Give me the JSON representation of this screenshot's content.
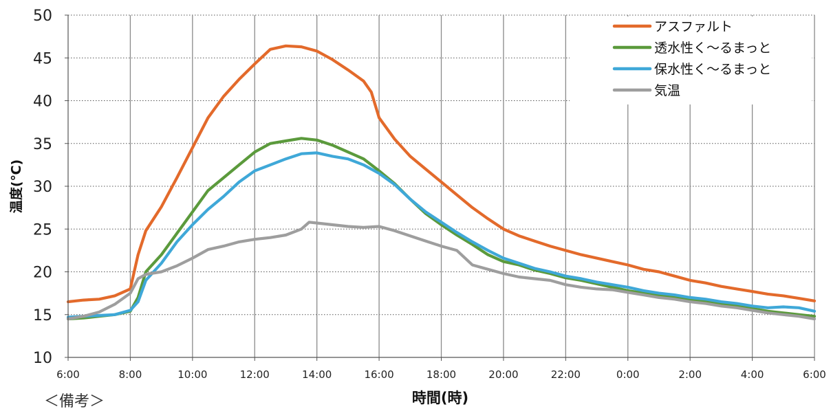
{
  "chart_data": {
    "type": "line",
    "xlabel": "時間(時)",
    "ylabel": "温度(℃)",
    "ylim": [
      10,
      50
    ],
    "yticks": [
      10,
      15,
      20,
      25,
      30,
      35,
      40,
      45,
      50
    ],
    "x_tick_labels": [
      "6:00",
      "8:00",
      "10:00",
      "12:00",
      "14:00",
      "16:00",
      "18:00",
      "20:00",
      "22:00",
      "0:00",
      "2:00",
      "4:00",
      "6:00"
    ],
    "x_hours_range": [
      6,
      30
    ],
    "grid": "vertical solid lines every 2 hours, horizontal dotted lines every 5",
    "legend_position": "top-right",
    "series": [
      {
        "name": "アスファルト",
        "color": "#E36A2B",
        "points": [
          [
            6.0,
            16.5
          ],
          [
            6.5,
            16.7
          ],
          [
            7.0,
            16.8
          ],
          [
            7.5,
            17.2
          ],
          [
            8.0,
            18.0
          ],
          [
            8.25,
            22.0
          ],
          [
            8.5,
            24.8
          ],
          [
            8.75,
            26.2
          ],
          [
            9.0,
            27.6
          ],
          [
            9.5,
            31.0
          ],
          [
            10.0,
            34.5
          ],
          [
            10.5,
            38.0
          ],
          [
            11.0,
            40.5
          ],
          [
            11.5,
            42.5
          ],
          [
            12.0,
            44.3
          ],
          [
            12.5,
            46.0
          ],
          [
            13.0,
            46.4
          ],
          [
            13.5,
            46.3
          ],
          [
            14.0,
            45.8
          ],
          [
            14.5,
            44.8
          ],
          [
            15.0,
            43.6
          ],
          [
            15.5,
            42.3
          ],
          [
            15.75,
            41.0
          ],
          [
            16.0,
            38.0
          ],
          [
            16.5,
            35.5
          ],
          [
            17.0,
            33.5
          ],
          [
            17.5,
            32.0
          ],
          [
            18.0,
            30.5
          ],
          [
            18.5,
            29.0
          ],
          [
            19.0,
            27.5
          ],
          [
            19.5,
            26.2
          ],
          [
            20.0,
            25.0
          ],
          [
            20.5,
            24.2
          ],
          [
            21.0,
            23.6
          ],
          [
            21.5,
            23.0
          ],
          [
            22.0,
            22.5
          ],
          [
            22.5,
            22.0
          ],
          [
            23.0,
            21.6
          ],
          [
            23.5,
            21.2
          ],
          [
            24.0,
            20.8
          ],
          [
            24.5,
            20.3
          ],
          [
            25.0,
            20.0
          ],
          [
            25.5,
            19.5
          ],
          [
            26.0,
            19.0
          ],
          [
            26.5,
            18.7
          ],
          [
            27.0,
            18.3
          ],
          [
            27.5,
            18.0
          ],
          [
            28.0,
            17.7
          ],
          [
            28.5,
            17.4
          ],
          [
            29.0,
            17.2
          ],
          [
            29.5,
            16.9
          ],
          [
            30.0,
            16.6
          ]
        ]
      },
      {
        "name": "透水性く～るまっと",
        "color": "#5B9A3C",
        "points": [
          [
            6.0,
            14.5
          ],
          [
            6.5,
            14.6
          ],
          [
            7.0,
            14.8
          ],
          [
            7.5,
            15.0
          ],
          [
            8.0,
            15.4
          ],
          [
            8.25,
            17.0
          ],
          [
            8.5,
            20.0
          ],
          [
            9.0,
            22.0
          ],
          [
            9.5,
            24.5
          ],
          [
            10.0,
            27.0
          ],
          [
            10.5,
            29.5
          ],
          [
            11.0,
            31.0
          ],
          [
            11.5,
            32.5
          ],
          [
            12.0,
            34.0
          ],
          [
            12.5,
            35.0
          ],
          [
            13.0,
            35.3
          ],
          [
            13.5,
            35.6
          ],
          [
            14.0,
            35.4
          ],
          [
            14.5,
            34.8
          ],
          [
            15.0,
            34.0
          ],
          [
            15.5,
            33.2
          ],
          [
            16.0,
            31.8
          ],
          [
            16.5,
            30.3
          ],
          [
            17.0,
            28.5
          ],
          [
            17.5,
            26.8
          ],
          [
            18.0,
            25.5
          ],
          [
            18.5,
            24.3
          ],
          [
            19.0,
            23.2
          ],
          [
            19.5,
            22.0
          ],
          [
            20.0,
            21.2
          ],
          [
            20.5,
            20.8
          ],
          [
            21.0,
            20.2
          ],
          [
            21.5,
            19.8
          ],
          [
            22.0,
            19.3
          ],
          [
            22.5,
            19.0
          ],
          [
            23.0,
            18.6
          ],
          [
            23.5,
            18.2
          ],
          [
            24.0,
            17.8
          ],
          [
            24.5,
            17.5
          ],
          [
            25.0,
            17.2
          ],
          [
            25.5,
            17.0
          ],
          [
            26.0,
            16.8
          ],
          [
            26.5,
            16.5
          ],
          [
            27.0,
            16.3
          ],
          [
            27.5,
            16.0
          ],
          [
            28.0,
            15.7
          ],
          [
            28.5,
            15.4
          ],
          [
            29.0,
            15.2
          ],
          [
            29.5,
            15.0
          ],
          [
            30.0,
            14.8
          ]
        ]
      },
      {
        "name": "保水性く～るまっと",
        "color": "#3FA8D8",
        "points": [
          [
            6.0,
            14.7
          ],
          [
            6.5,
            14.8
          ],
          [
            7.0,
            14.9
          ],
          [
            7.5,
            15.0
          ],
          [
            8.0,
            15.5
          ],
          [
            8.25,
            16.5
          ],
          [
            8.5,
            19.0
          ],
          [
            9.0,
            21.0
          ],
          [
            9.5,
            23.5
          ],
          [
            10.0,
            25.5
          ],
          [
            10.5,
            27.3
          ],
          [
            11.0,
            28.8
          ],
          [
            11.5,
            30.5
          ],
          [
            12.0,
            31.8
          ],
          [
            12.5,
            32.5
          ],
          [
            13.0,
            33.2
          ],
          [
            13.5,
            33.8
          ],
          [
            14.0,
            33.9
          ],
          [
            14.5,
            33.5
          ],
          [
            15.0,
            33.2
          ],
          [
            15.5,
            32.5
          ],
          [
            16.0,
            31.5
          ],
          [
            16.5,
            30.2
          ],
          [
            17.0,
            28.5
          ],
          [
            17.5,
            27.0
          ],
          [
            18.0,
            25.8
          ],
          [
            18.5,
            24.6
          ],
          [
            19.0,
            23.5
          ],
          [
            19.5,
            22.5
          ],
          [
            20.0,
            21.6
          ],
          [
            20.5,
            21.0
          ],
          [
            21.0,
            20.4
          ],
          [
            21.5,
            20.0
          ],
          [
            22.0,
            19.5
          ],
          [
            22.5,
            19.2
          ],
          [
            23.0,
            18.8
          ],
          [
            23.5,
            18.5
          ],
          [
            24.0,
            18.2
          ],
          [
            24.5,
            17.8
          ],
          [
            25.0,
            17.5
          ],
          [
            25.5,
            17.3
          ],
          [
            26.0,
            17.0
          ],
          [
            26.5,
            16.8
          ],
          [
            27.0,
            16.5
          ],
          [
            27.5,
            16.3
          ],
          [
            28.0,
            16.0
          ],
          [
            28.5,
            15.8
          ],
          [
            29.0,
            15.9
          ],
          [
            29.5,
            15.8
          ],
          [
            30.0,
            15.4
          ]
        ]
      },
      {
        "name": "気温",
        "color": "#9E9E9E",
        "points": [
          [
            6.0,
            14.5
          ],
          [
            6.5,
            14.8
          ],
          [
            7.0,
            15.3
          ],
          [
            7.5,
            16.2
          ],
          [
            8.0,
            17.5
          ],
          [
            8.25,
            19.2
          ],
          [
            8.5,
            19.7
          ],
          [
            9.0,
            20.0
          ],
          [
            9.5,
            20.7
          ],
          [
            10.0,
            21.6
          ],
          [
            10.5,
            22.6
          ],
          [
            11.0,
            23.0
          ],
          [
            11.5,
            23.5
          ],
          [
            12.0,
            23.8
          ],
          [
            12.5,
            24.0
          ],
          [
            13.0,
            24.3
          ],
          [
            13.5,
            25.0
          ],
          [
            13.75,
            25.8
          ],
          [
            14.0,
            25.7
          ],
          [
            14.5,
            25.5
          ],
          [
            15.0,
            25.3
          ],
          [
            15.5,
            25.2
          ],
          [
            16.0,
            25.3
          ],
          [
            16.5,
            24.8
          ],
          [
            17.0,
            24.2
          ],
          [
            17.5,
            23.6
          ],
          [
            18.0,
            23.0
          ],
          [
            18.5,
            22.5
          ],
          [
            19.0,
            20.8
          ],
          [
            19.5,
            20.3
          ],
          [
            20.0,
            19.8
          ],
          [
            20.5,
            19.4
          ],
          [
            21.0,
            19.2
          ],
          [
            21.5,
            19.0
          ],
          [
            22.0,
            18.5
          ],
          [
            22.5,
            18.2
          ],
          [
            23.0,
            18.0
          ],
          [
            23.5,
            17.9
          ],
          [
            24.0,
            17.6
          ],
          [
            24.5,
            17.3
          ],
          [
            25.0,
            17.0
          ],
          [
            25.5,
            16.8
          ],
          [
            26.0,
            16.5
          ],
          [
            26.5,
            16.3
          ],
          [
            27.0,
            16.0
          ],
          [
            27.5,
            15.8
          ],
          [
            28.0,
            15.5
          ],
          [
            28.5,
            15.2
          ],
          [
            29.0,
            15.0
          ],
          [
            29.5,
            14.8
          ],
          [
            30.0,
            14.5
          ]
        ]
      }
    ]
  },
  "note": "＜備考＞"
}
